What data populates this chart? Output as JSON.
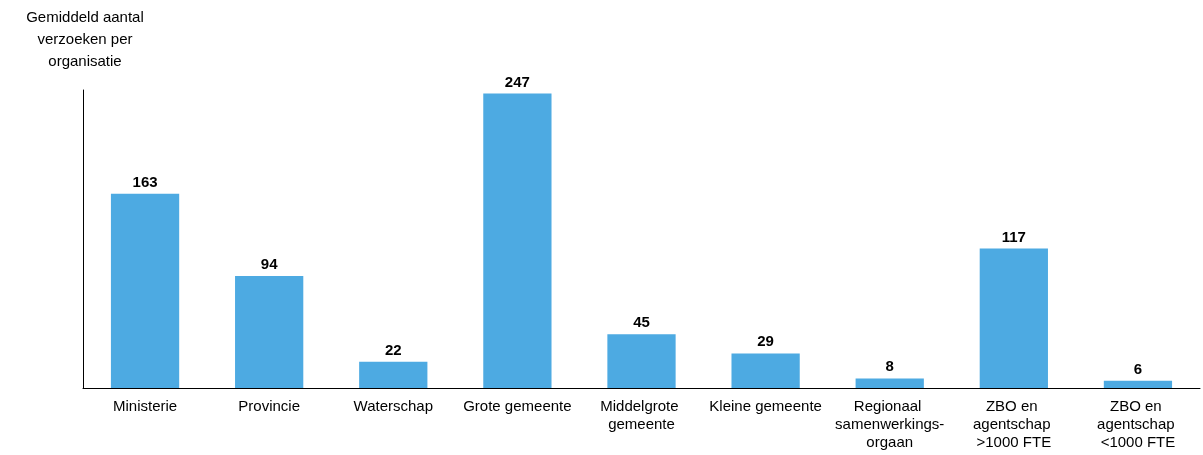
{
  "chart_data": {
    "type": "bar",
    "ylabel": "Gemiddeld aantal verzoeken per organisatie",
    "categories": [
      "Ministerie",
      "Provincie",
      "Waterschap",
      "Grote gemeente",
      "Middelgrote gemeente",
      "Kleine gemeente",
      "Regionaal samenwerkings-orgaan",
      "ZBO en agentschap >1000 FTE",
      "ZBO en agentschap <1000 FTE"
    ],
    "values": [
      163,
      94,
      22,
      247,
      45,
      29,
      8,
      117,
      6
    ],
    "color": "#4daae2",
    "ylim": [
      0,
      250
    ],
    "data_labels": true,
    "grid": false,
    "tick_labels": "x"
  }
}
